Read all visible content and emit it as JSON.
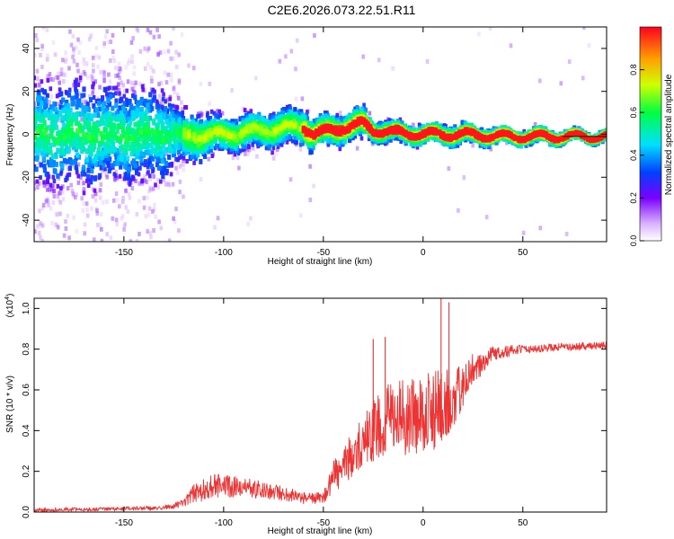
{
  "title": "C2E6.2026.073.22.51.R11",
  "colors": {
    "snr_line": "#ee3333",
    "axis": "#000000",
    "ridge_low": "#4400ff",
    "ridge_high": "#ff0000"
  },
  "chart_data": [
    {
      "id": "spectrogram",
      "type": "heatmap",
      "xlabel": "Height of straight line (km)",
      "ylabel": "Frequency (Hz)",
      "xlim": [
        -195,
        92
      ],
      "ylim": [
        -50,
        50
      ],
      "xticks": [
        -150,
        -100,
        -50,
        0,
        50
      ],
      "yticks": [
        -40,
        -20,
        0,
        20,
        40
      ],
      "colorbar": {
        "label": "Normalized spectral amplitude",
        "range": [
          0,
          1
        ],
        "ticks": [
          0.0,
          0.2,
          0.4,
          0.6,
          0.8
        ]
      },
      "ridge": {
        "x": [
          -195,
          -170,
          -150,
          -130,
          -120,
          -100,
          -80,
          -60,
          -55,
          -40,
          -30,
          -25,
          -15,
          0,
          20,
          40,
          60,
          80,
          92
        ],
        "freq_center": [
          0,
          0,
          0,
          0,
          -1,
          0,
          2,
          4,
          0,
          3,
          5,
          2,
          1,
          0,
          0,
          -1,
          -1,
          -1,
          -1
        ],
        "spread": [
          14,
          14,
          13,
          12,
          6,
          4,
          4,
          4,
          3,
          3,
          3,
          2,
          2,
          2,
          2,
          1.5,
          1.5,
          1,
          1
        ]
      }
    },
    {
      "id": "snr",
      "type": "line",
      "xlabel": "Height of straight line (km)",
      "ylabel": "SNR (10 * v/v)",
      "scale_note": "(x10",
      "scale_exp": "4",
      "scale_close": ")",
      "xlim": [
        -195,
        92
      ],
      "ylim": [
        0,
        1.05
      ],
      "xticks": [
        -150,
        -100,
        -50,
        0,
        50
      ],
      "yticks": [
        0.0,
        0.2,
        0.4,
        0.6,
        0.8,
        1.0
      ],
      "envelope": {
        "x": [
          -195,
          -130,
          -120,
          -115,
          -105,
          -90,
          -75,
          -60,
          -50,
          -45,
          -35,
          -25,
          -15,
          -5,
          5,
          15,
          25,
          35,
          50,
          70,
          92
        ],
        "mean": [
          0.01,
          0.02,
          0.04,
          0.09,
          0.13,
          0.12,
          0.1,
          0.07,
          0.07,
          0.17,
          0.28,
          0.4,
          0.48,
          0.46,
          0.5,
          0.55,
          0.7,
          0.78,
          0.8,
          0.81,
          0.82
        ],
        "noise": [
          0.01,
          0.01,
          0.02,
          0.05,
          0.06,
          0.05,
          0.04,
          0.03,
          0.03,
          0.08,
          0.12,
          0.15,
          0.18,
          0.2,
          0.2,
          0.15,
          0.08,
          0.04,
          0.02,
          0.02,
          0.02
        ]
      },
      "spikes": [
        {
          "x": -25,
          "y": 0.85
        },
        {
          "x": -19,
          "y": 0.86
        },
        {
          "x": 9,
          "y": 1.05
        },
        {
          "x": 13,
          "y": 1.03
        }
      ]
    }
  ]
}
